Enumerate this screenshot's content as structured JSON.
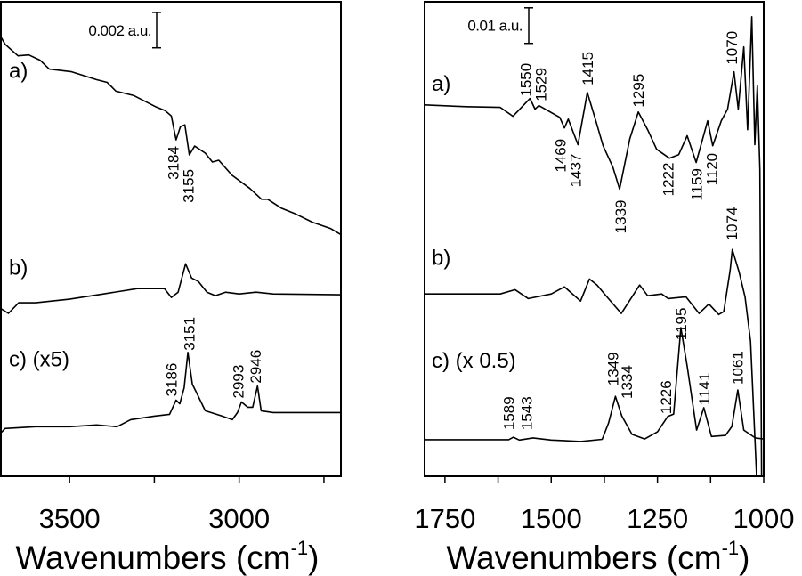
{
  "chart_data": [
    {
      "type": "line",
      "xlabel": "Wavenumbers (cm",
      "xlabel_sup": "-1",
      "xlabel_end": ")",
      "xlim": [
        3705,
        2700
      ],
      "ylim": [
        0,
        0.0268
      ],
      "xticks": [
        3500,
        3250,
        3000,
        2750
      ],
      "xtick_labels": [
        "3500",
        "3000"
      ],
      "xtick_label_values": [
        3500,
        3000
      ],
      "scale_bar": {
        "label": "0.002 a.u.",
        "value": 0.002,
        "top": 0.0262
      },
      "series": [
        {
          "name": "a)",
          "label_y": 0.0225,
          "points": [
            [
              3705,
              0.0249
            ],
            [
              3690,
              0.0244
            ],
            [
              3652,
              0.02375
            ],
            [
              3620,
              0.0238
            ],
            [
              3587,
              0.0235
            ],
            [
              3560,
              0.023
            ],
            [
              3494,
              0.02285
            ],
            [
              3420,
              0.0224
            ],
            [
              3389,
              0.02225
            ],
            [
              3363,
              0.02175
            ],
            [
              3310,
              0.0215
            ],
            [
              3244,
              0.02085
            ],
            [
              3218,
              0.02065
            ],
            [
              3200,
              0.02035
            ],
            [
              3186,
              0.019
            ],
            [
              3173,
              0.01975
            ],
            [
              3160,
              0.01985
            ],
            [
              3147,
              0.01815
            ],
            [
              3131,
              0.01865
            ],
            [
              3100,
              0.01825
            ],
            [
              3079,
              0.01775
            ],
            [
              3060,
              0.01785
            ],
            [
              3021,
              0.017
            ],
            [
              2968,
              0.01625
            ],
            [
              2934,
              0.01565
            ],
            [
              2916,
              0.01565
            ],
            [
              2876,
              0.01515
            ],
            [
              2837,
              0.01485
            ],
            [
              2784,
              0.01435
            ],
            [
              2731,
              0.014
            ],
            [
              2700,
              0.01365
            ]
          ]
        },
        {
          "name": "b)",
          "label_y": 0.0114,
          "points": [
            [
              3705,
              0.0095
            ],
            [
              3680,
              0.0092
            ],
            [
              3650,
              0.0098
            ],
            [
              3600,
              0.0098
            ],
            [
              3500,
              0.01
            ],
            [
              3400,
              0.0103
            ],
            [
              3300,
              0.0106
            ],
            [
              3220,
              0.0106
            ],
            [
              3200,
              0.0101
            ],
            [
              3180,
              0.0104
            ],
            [
              3158,
              0.012
            ],
            [
              3140,
              0.0112
            ],
            [
              3120,
              0.011
            ],
            [
              3095,
              0.0104
            ],
            [
              3070,
              0.0102
            ],
            [
              3040,
              0.0104
            ],
            [
              3000,
              0.0103
            ],
            [
              2950,
              0.0104
            ],
            [
              2900,
              0.0103
            ],
            [
              2700,
              0.01025
            ]
          ]
        },
        {
          "name": "c) (x5)",
          "label_y": 0.0062,
          "points": [
            [
              3705,
              0.0024
            ],
            [
              3690,
              0.0027
            ],
            [
              3600,
              0.0028
            ],
            [
              3500,
              0.0028
            ],
            [
              3420,
              0.0029
            ],
            [
              3360,
              0.0028
            ],
            [
              3320,
              0.0032
            ],
            [
              3250,
              0.0034
            ],
            [
              3205,
              0.0035
            ],
            [
              3186,
              0.0043
            ],
            [
              3175,
              0.0041
            ],
            [
              3162,
              0.005
            ],
            [
              3151,
              0.007
            ],
            [
              3138,
              0.0052
            ],
            [
              3125,
              0.0047
            ],
            [
              3100,
              0.0037
            ],
            [
              3050,
              0.0034
            ],
            [
              3020,
              0.0032
            ],
            [
              3005,
              0.0036
            ],
            [
              2993,
              0.0042
            ],
            [
              2975,
              0.0039
            ],
            [
              2960,
              0.0039
            ],
            [
              2946,
              0.0051
            ],
            [
              2935,
              0.0037
            ],
            [
              2900,
              0.0036
            ],
            [
              2700,
              0.0036
            ]
          ]
        }
      ],
      "annotations": [
        {
          "text": "3184",
          "x": 3195,
          "y": 0.01675
        },
        {
          "text": "3155",
          "x": 3150,
          "y": 0.01545
        },
        {
          "text": "3186",
          "x": 3200,
          "y": 0.0045
        },
        {
          "text": "3151",
          "x": 3148,
          "y": 0.0071
        },
        {
          "text": "2993",
          "x": 3003,
          "y": 0.0044
        },
        {
          "text": "2946",
          "x": 2952,
          "y": 0.00525
        }
      ]
    },
    {
      "type": "line",
      "xlabel": "Wavenumbers (cm",
      "xlabel_sup": "-1",
      "xlabel_end": ")",
      "xlim": [
        1800,
        1000
      ],
      "ylim": [
        0,
        0.1335
      ],
      "xticks": [
        1750,
        1625,
        1500,
        1375,
        1250,
        1125,
        1000
      ],
      "xtick_labels": [
        "1750",
        "1500",
        "1250",
        "1000"
      ],
      "xtick_label_values": [
        1750,
        1500,
        1250,
        1000
      ],
      "scale_bar": {
        "label": "0.01 a.u.",
        "value": 0.01,
        "top": 0.1318
      },
      "series": [
        {
          "name": "a)",
          "label_y": 0.1085,
          "points": [
            [
              1800,
              0.1045
            ],
            [
              1700,
              0.104
            ],
            [
              1620,
              0.1038
            ],
            [
              1590,
              0.1013
            ],
            [
              1550,
              0.1063
            ],
            [
              1538,
              0.1033
            ],
            [
              1529,
              0.1043
            ],
            [
              1480,
              0.101
            ],
            [
              1469,
              0.098
            ],
            [
              1460,
              0.1005
            ],
            [
              1437,
              0.0933
            ],
            [
              1415,
              0.108
            ],
            [
              1395,
              0.1
            ],
            [
              1378,
              0.093
            ],
            [
              1355,
              0.087
            ],
            [
              1339,
              0.0808
            ],
            [
              1315,
              0.095
            ],
            [
              1295,
              0.1025
            ],
            [
              1273,
              0.0975
            ],
            [
              1252,
              0.092
            ],
            [
              1222,
              0.0895
            ],
            [
              1200,
              0.0905
            ],
            [
              1180,
              0.0958
            ],
            [
              1159,
              0.0883
            ],
            [
              1132,
              0.1
            ],
            [
              1120,
              0.093
            ],
            [
              1100,
              0.1
            ],
            [
              1085,
              0.1033
            ],
            [
              1070,
              0.1138
            ],
            [
              1060,
              0.1033
            ],
            [
              1047,
              0.1208
            ],
            [
              1038,
              0.0975
            ],
            [
              1028,
              0.1293
            ],
            [
              1021,
              0.0933
            ],
            [
              1015,
              0.11
            ],
            [
              1009,
              0.0863
            ],
            [
              1005,
              0.0
            ]
          ]
        },
        {
          "name": "b)",
          "label_y": 0.0595,
          "points": [
            [
              1800,
              0.0513
            ],
            [
              1620,
              0.0513
            ],
            [
              1585,
              0.0525
            ],
            [
              1554,
              0.05
            ],
            [
              1500,
              0.0513
            ],
            [
              1469,
              0.0533
            ],
            [
              1431,
              0.0493
            ],
            [
              1410,
              0.0555
            ],
            [
              1392,
              0.0538
            ],
            [
              1371,
              0.0508
            ],
            [
              1335,
              0.0458
            ],
            [
              1292,
              0.0538
            ],
            [
              1273,
              0.0508
            ],
            [
              1240,
              0.0513
            ],
            [
              1225,
              0.05
            ],
            [
              1183,
              0.0505
            ],
            [
              1152,
              0.0458
            ],
            [
              1129,
              0.0485
            ],
            [
              1106,
              0.0455
            ],
            [
              1094,
              0.0463
            ],
            [
              1079,
              0.058
            ],
            [
              1074,
              0.0638
            ],
            [
              1058,
              0.0575
            ],
            [
              1044,
              0.0505
            ],
            [
              1031,
              0.038
            ],
            [
              1017,
              0.0005
            ]
          ]
        },
        {
          "name": "c) (x 0.5)",
          "label_y": 0.0305,
          "points": [
            [
              1800,
              0.0103
            ],
            [
              1600,
              0.0103
            ],
            [
              1589,
              0.011
            ],
            [
              1575,
              0.0102
            ],
            [
              1543,
              0.0108
            ],
            [
              1500,
              0.0102
            ],
            [
              1431,
              0.0098
            ],
            [
              1380,
              0.0104
            ],
            [
              1365,
              0.015
            ],
            [
              1349,
              0.0225
            ],
            [
              1334,
              0.017
            ],
            [
              1310,
              0.0118
            ],
            [
              1280,
              0.0105
            ],
            [
              1250,
              0.0125
            ],
            [
              1226,
              0.0168
            ],
            [
              1212,
              0.0175
            ],
            [
              1195,
              0.0418
            ],
            [
              1180,
              0.031
            ],
            [
              1158,
              0.013
            ],
            [
              1141,
              0.0193
            ],
            [
              1123,
              0.0112
            ],
            [
              1090,
              0.0115
            ],
            [
              1075,
              0.014
            ],
            [
              1061,
              0.0243
            ],
            [
              1047,
              0.013
            ],
            [
              1020,
              0.0108
            ],
            [
              1000,
              0.0105
            ]
          ]
        }
      ],
      "annotations": [
        {
          "text": "1550",
          "x": 1560,
          "y": 0.1068
        },
        {
          "text": "1529",
          "x": 1525,
          "y": 0.1055
        },
        {
          "text": "1415",
          "x": 1415,
          "y": 0.11
        },
        {
          "text": "1295",
          "x": 1295,
          "y": 0.1038
        },
        {
          "text": "1469",
          "x": 1478,
          "y": 0.0855
        },
        {
          "text": "1437",
          "x": 1443,
          "y": 0.0813
        },
        {
          "text": "1339",
          "x": 1337,
          "y": 0.0683
        },
        {
          "text": "1222",
          "x": 1225,
          "y": 0.0788
        },
        {
          "text": "1159",
          "x": 1158,
          "y": 0.0775
        },
        {
          "text": "1120",
          "x": 1122,
          "y": 0.0818
        },
        {
          "text": "1070",
          "x": 1075,
          "y": 0.1158
        },
        {
          "text": "1074",
          "x": 1075,
          "y": 0.0663
        },
        {
          "text": "1589",
          "x": 1600,
          "y": 0.013
        },
        {
          "text": "1543",
          "x": 1558,
          "y": 0.013
        },
        {
          "text": "1349",
          "x": 1355,
          "y": 0.0255
        },
        {
          "text": "1334",
          "x": 1322,
          "y": 0.0218
        },
        {
          "text": "1226",
          "x": 1230,
          "y": 0.0175
        },
        {
          "text": "1195",
          "x": 1195,
          "y": 0.0383
        },
        {
          "text": "1141",
          "x": 1140,
          "y": 0.02
        },
        {
          "text": "1061",
          "x": 1062,
          "y": 0.0258
        }
      ]
    }
  ]
}
